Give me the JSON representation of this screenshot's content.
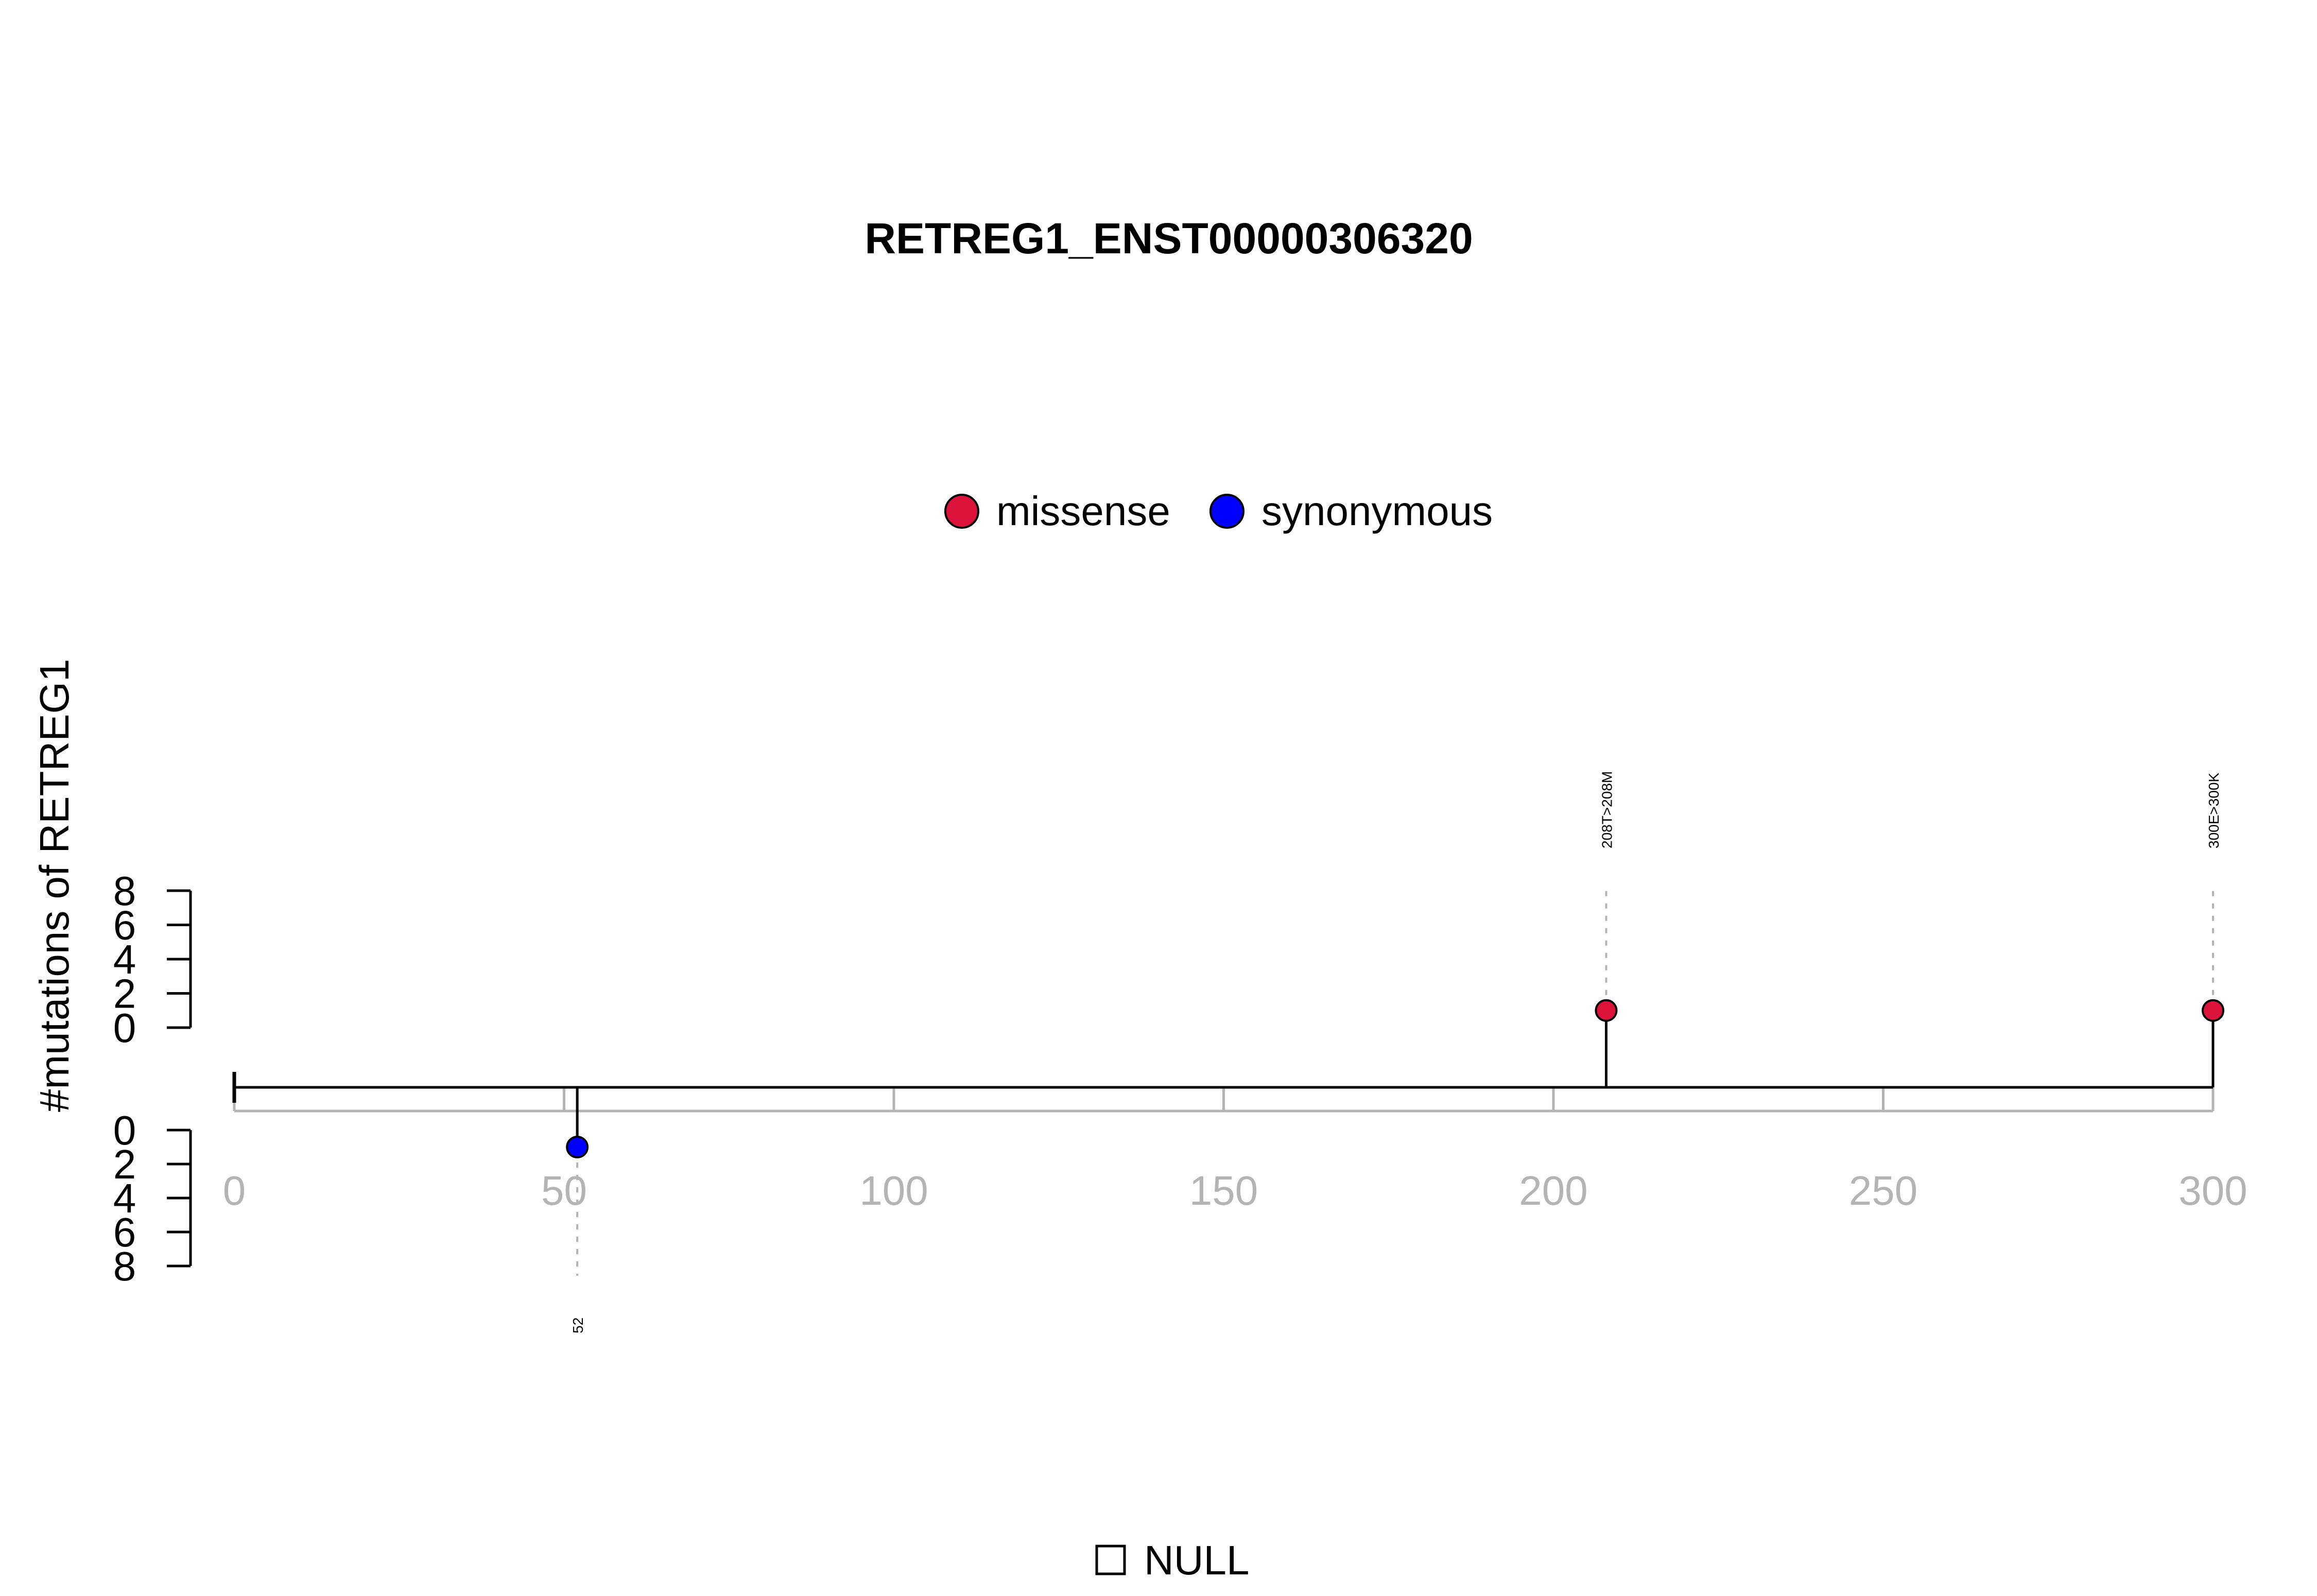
{
  "chart_data": {
    "type": "lollipop",
    "title": "RETREG1_ENST00000306320",
    "ylabel": "#mutations of RETREG1",
    "xlim": [
      0,
      300
    ],
    "x_ticks": [
      0,
      50,
      100,
      150,
      200,
      250,
      300
    ],
    "y_ticks_top": [
      0,
      2,
      4,
      6,
      8
    ],
    "y_ticks_bottom": [
      0,
      2,
      4,
      6,
      8
    ],
    "ylim": [
      0,
      8
    ],
    "legend": {
      "placement": "top-center",
      "entries": [
        {
          "name": "missense",
          "color": "#dc143c"
        },
        {
          "name": "synonymous",
          "color": "#0000ff"
        }
      ]
    },
    "bottom_legend": {
      "label": "NULL"
    },
    "mutations": [
      {
        "position": 208,
        "count": 1,
        "side": "top",
        "type": "missense",
        "label": "208T>208M",
        "color": "#dc143c"
      },
      {
        "position": 300,
        "count": 1,
        "side": "top",
        "type": "missense",
        "label": "300E>300K",
        "color": "#dc143c"
      },
      {
        "position": 52,
        "count": 1,
        "side": "bottom",
        "type": "synonymous",
        "label": "52",
        "color": "#0000ff"
      }
    ]
  }
}
